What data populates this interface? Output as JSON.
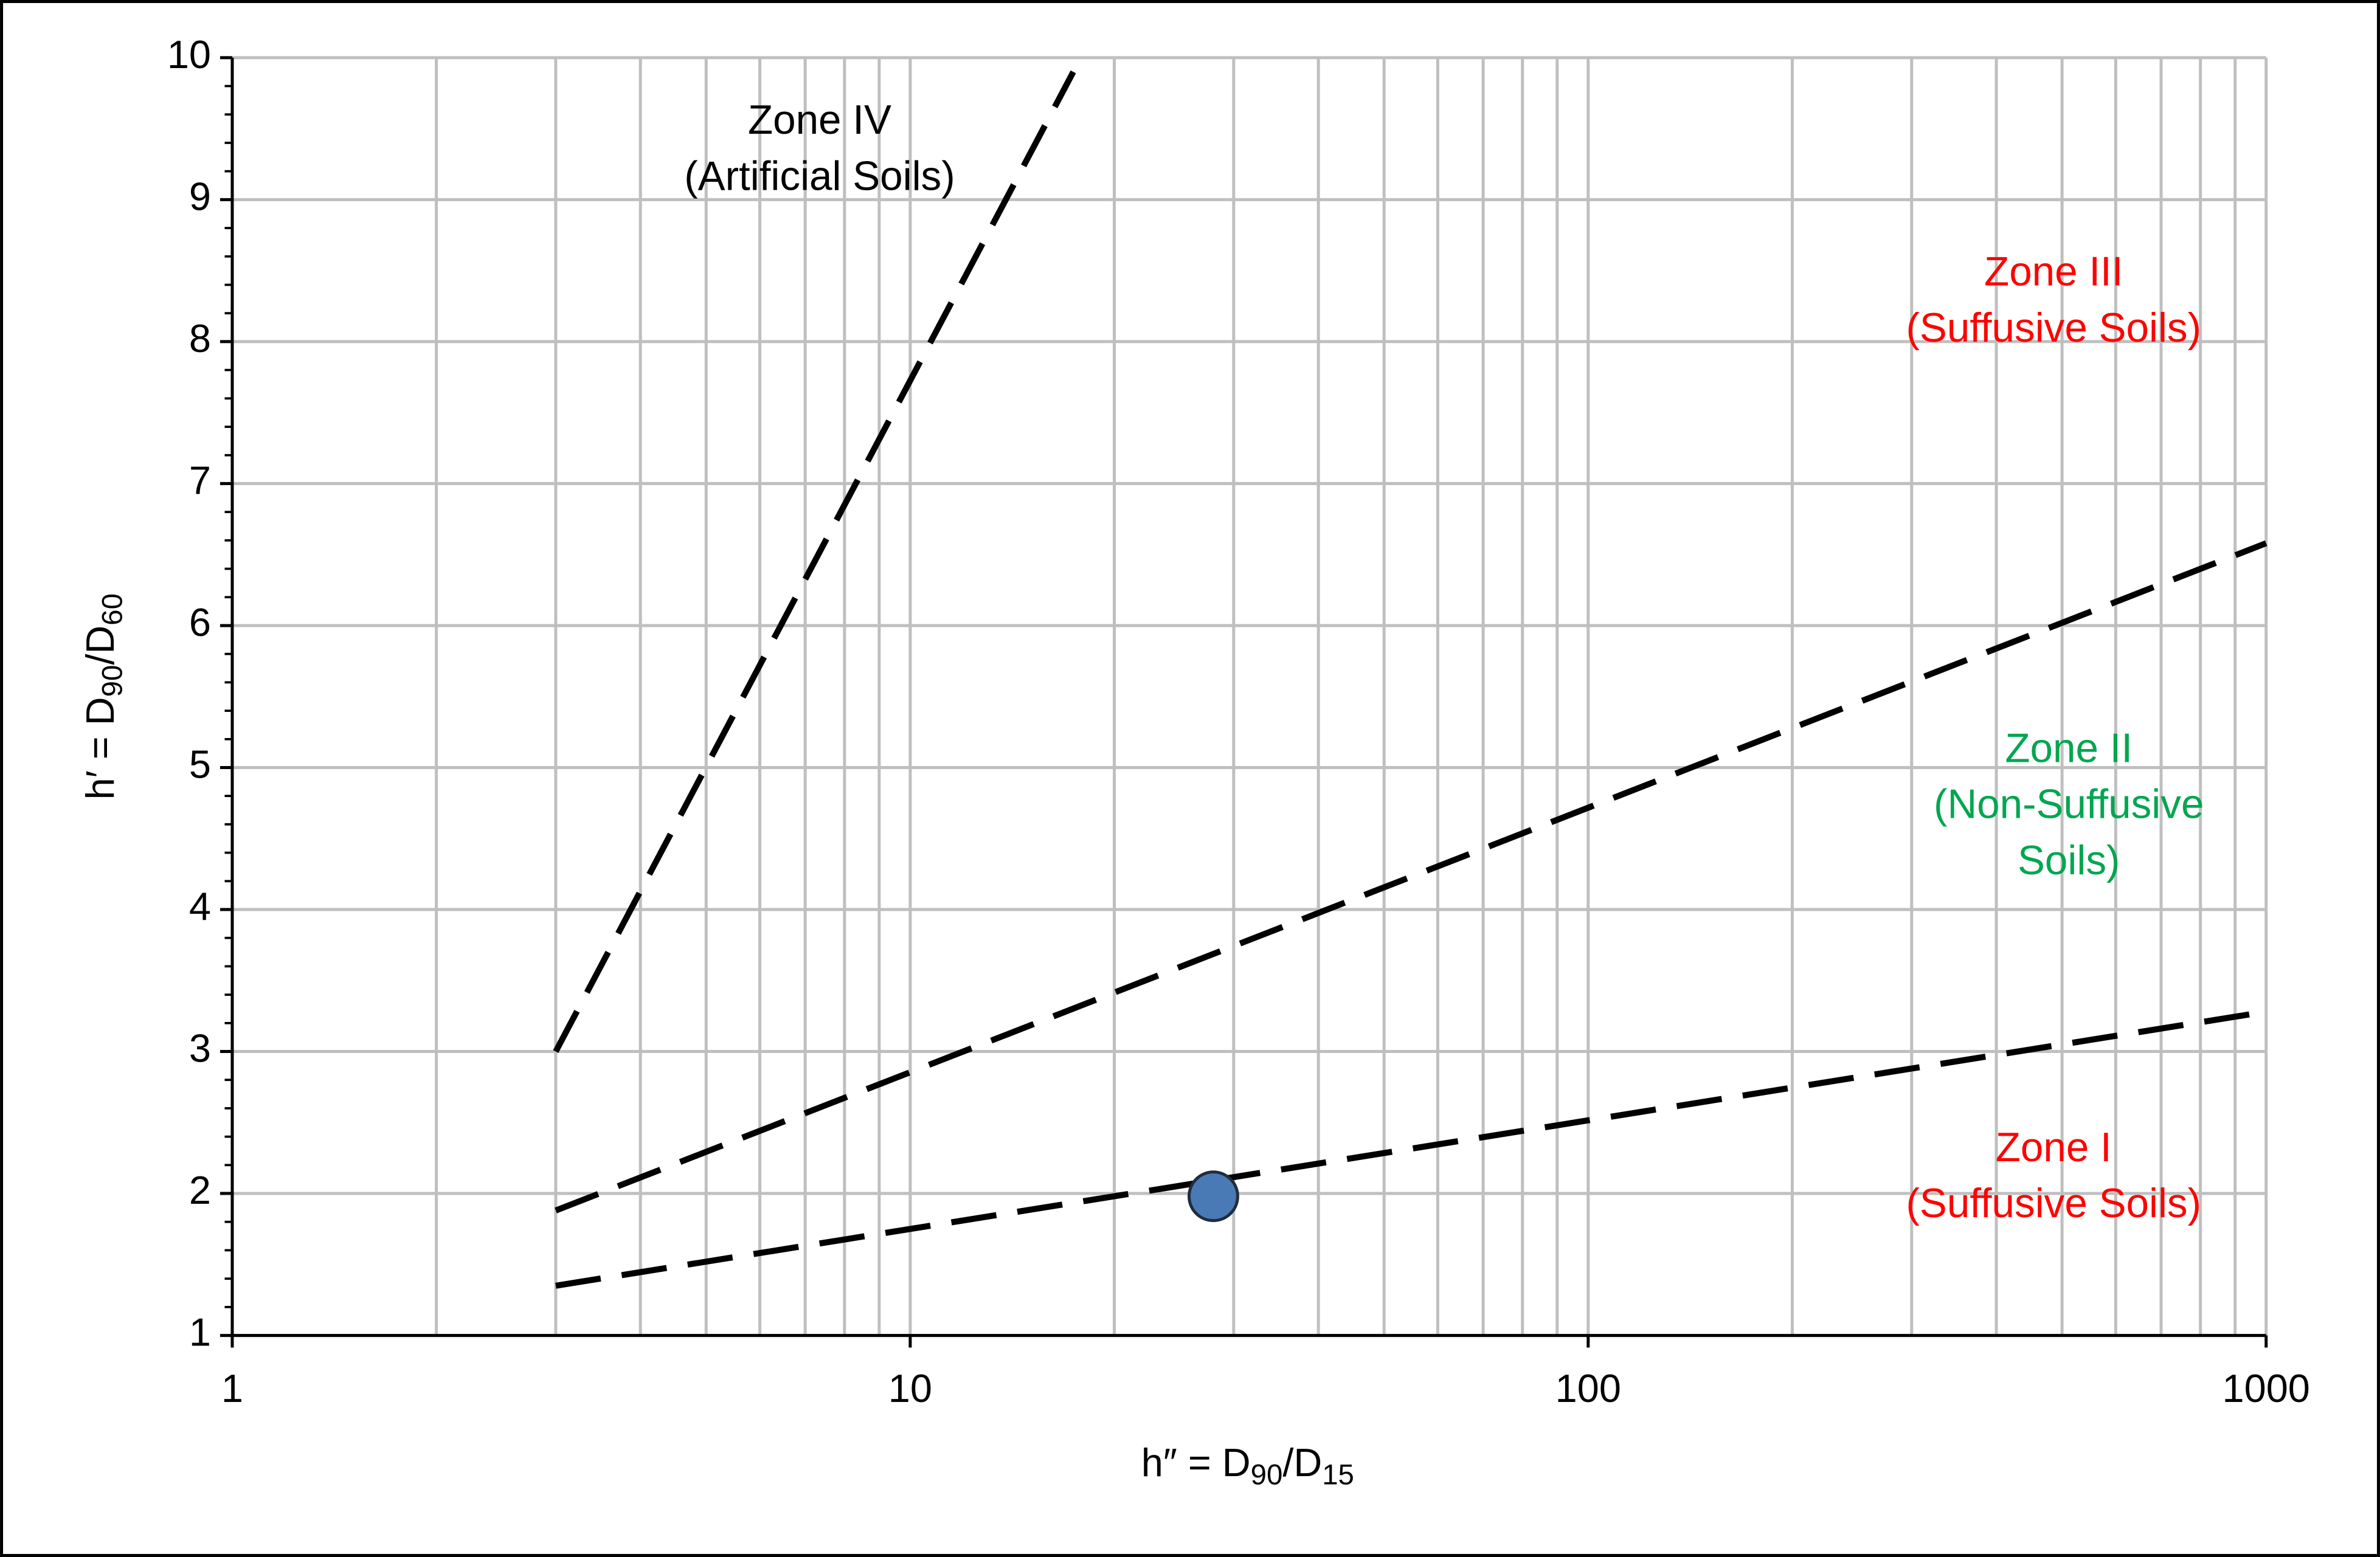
{
  "chart_data": {
    "type": "line",
    "xlabel": [
      {
        "text": "h″ = D"
      },
      {
        "sub": "90"
      },
      {
        "text": "/D"
      },
      {
        "sub": "15"
      }
    ],
    "ylabel": [
      {
        "text": "h′ = D"
      },
      {
        "sub": "90"
      },
      {
        "text": "/D"
      },
      {
        "sub": "60"
      }
    ],
    "xscale": "log",
    "xlim": [
      1,
      1000
    ],
    "xticks": [
      1,
      10,
      100,
      1000
    ],
    "x_minor_ticks": [
      2,
      3,
      4,
      5,
      6,
      7,
      8,
      9,
      20,
      30,
      40,
      50,
      60,
      70,
      80,
      90,
      200,
      300,
      400,
      500,
      600,
      700,
      800,
      900
    ],
    "ylim": [
      1,
      10
    ],
    "yticks": [
      1,
      2,
      3,
      4,
      5,
      6,
      7,
      8,
      9,
      10
    ],
    "y_minor_ticks": [
      1.2,
      1.4,
      1.6,
      1.8,
      2.2,
      2.4,
      2.6,
      2.8,
      3.2,
      3.4,
      3.6,
      3.8,
      4.2,
      4.4,
      4.6,
      4.8,
      5.2,
      5.4,
      5.6,
      5.8,
      6.2,
      6.4,
      6.6,
      6.8,
      7.2,
      7.4,
      7.6,
      7.8,
      8.2,
      8.4,
      8.6,
      8.8,
      9.2,
      9.4,
      9.6,
      9.8
    ],
    "grid": true,
    "grid_color": "#bfbfbf",
    "series": [
      {
        "type": "line",
        "x": [
          3,
          17.4
        ],
        "y": [
          3,
          9.9
        ],
        "color": "#000000",
        "dashed": true
      },
      {
        "type": "line",
        "x": [
          3,
          1000
        ],
        "y": [
          1.88,
          6.58
        ],
        "color": "#000000",
        "dashed": true
      },
      {
        "type": "line",
        "x": [
          3,
          1000
        ],
        "y": [
          1.35,
          3.28
        ],
        "color": "#000000",
        "dashed": true
      },
      {
        "type": "scatter",
        "x": [
          28
        ],
        "y": [
          1.98
        ],
        "color": "#4a7ab5",
        "edgecolor": "#1f2d3d"
      }
    ],
    "annotations": [
      {
        "lines": [
          "Zone IV",
          "(Artificial Soils)"
        ],
        "color": "#000000"
      },
      {
        "lines": [
          "Zone III",
          "(Suffusive Soils)"
        ],
        "color": "#ff0000"
      },
      {
        "lines": [
          "Zone II",
          "(Non-Suffusive",
          "Soils)"
        ],
        "color": "#00a650"
      },
      {
        "lines": [
          "Zone I",
          "(Suffusive Soils)"
        ],
        "color": "#ff0000"
      }
    ]
  }
}
